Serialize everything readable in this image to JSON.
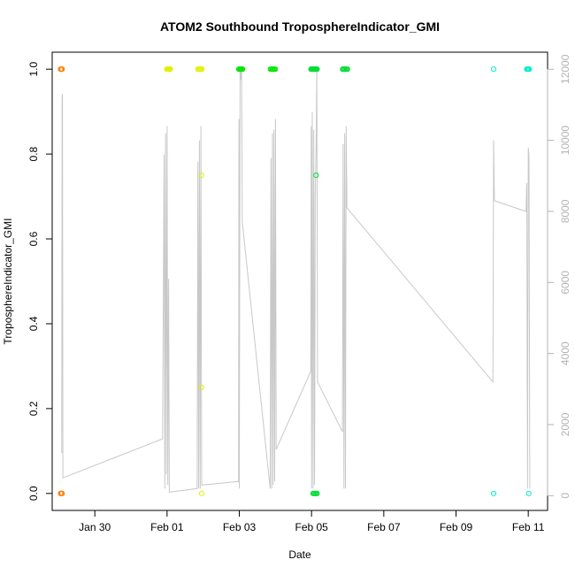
{
  "chart_data": {
    "type": "scatter",
    "title": "ATOM2 Southbound TroposphereIndicator_GMI",
    "xlabel": "Date",
    "ylabel": "TroposphereIndicator_GMI",
    "xlim": [
      "2025-01-28T19:40",
      "2025-02-11T12:50"
    ],
    "ylim": [
      -0.04,
      1.04
    ],
    "y2lim": [
      -415,
      12480
    ],
    "x_ticks": [
      {
        "t": "2025-01-30T00:00",
        "label": "Jan 30"
      },
      {
        "t": "2025-02-01T00:00",
        "label": "Feb 01"
      },
      {
        "t": "2025-02-03T00:00",
        "label": "Feb 03"
      },
      {
        "t": "2025-02-05T00:00",
        "label": "Feb 05"
      },
      {
        "t": "2025-02-07T00:00",
        "label": "Feb 07"
      },
      {
        "t": "2025-02-09T00:00",
        "label": "Feb 09"
      },
      {
        "t": "2025-02-11T00:00",
        "label": "Feb 11"
      }
    ],
    "y_ticks": [
      "0.0",
      "0.2",
      "0.4",
      "0.6",
      "0.8",
      "1.0"
    ],
    "y2_ticks": [
      "0",
      "2000",
      "4000",
      "6000",
      "8000",
      "10000",
      "12000"
    ],
    "grid": false,
    "series": [
      {
        "color": "#ff8000",
        "points": [
          {
            "t": "2025-01-29T01:15",
            "y": 1.0
          },
          {
            "t": "2025-01-29T01:30",
            "y": 1.0
          },
          {
            "t": "2025-01-29T01:45",
            "y": 1.0
          },
          {
            "t": "2025-01-29T02:00",
            "y": 1.0
          },
          {
            "t": "2025-01-29T02:15",
            "y": 1.0
          },
          {
            "t": "2025-01-29T01:15",
            "y": 0.0
          },
          {
            "t": "2025-01-29T01:30",
            "y": 0.0
          },
          {
            "t": "2025-01-29T01:45",
            "y": 0.0
          },
          {
            "t": "2025-01-29T02:00",
            "y": 0.0
          },
          {
            "t": "2025-01-29T02:15",
            "y": 0.0
          }
        ]
      },
      {
        "color": "#e0f000",
        "points": [
          {
            "t": "2025-01-31T23:50",
            "y": 1.0
          },
          {
            "t": "2025-02-01T00:20",
            "y": 1.0
          },
          {
            "t": "2025-02-01T00:50",
            "y": 1.0
          },
          {
            "t": "2025-02-01T01:20",
            "y": 1.0
          },
          {
            "t": "2025-02-01T01:50",
            "y": 1.0
          },
          {
            "t": "2025-02-01T02:10",
            "y": 1.0
          },
          {
            "t": "2025-02-01T20:30",
            "y": 1.0
          },
          {
            "t": "2025-02-01T21:10",
            "y": 1.0
          },
          {
            "t": "2025-02-01T21:50",
            "y": 1.0
          },
          {
            "t": "2025-02-01T22:30",
            "y": 1.0
          },
          {
            "t": "2025-02-01T23:10",
            "y": 1.0
          },
          {
            "t": "2025-02-01T22:50",
            "y": 0.75
          },
          {
            "t": "2025-02-01T22:50",
            "y": 0.25
          },
          {
            "t": "2025-02-01T23:00",
            "y": 0.0
          }
        ]
      },
      {
        "color": "#00e600",
        "points": [
          {
            "t": "2025-02-02T23:40",
            "y": 1.0
          },
          {
            "t": "2025-02-03T00:10",
            "y": 1.0
          },
          {
            "t": "2025-02-03T00:40",
            "y": 1.0
          },
          {
            "t": "2025-02-03T01:10",
            "y": 1.0
          },
          {
            "t": "2025-02-03T01:40",
            "y": 1.0
          },
          {
            "t": "2025-02-03T02:10",
            "y": 1.0
          },
          {
            "t": "2025-02-03T20:40",
            "y": 1.0
          },
          {
            "t": "2025-02-03T21:20",
            "y": 1.0
          },
          {
            "t": "2025-02-03T22:00",
            "y": 1.0
          },
          {
            "t": "2025-02-03T22:40",
            "y": 1.0
          },
          {
            "t": "2025-02-03T23:20",
            "y": 1.0
          },
          {
            "t": "2025-02-03T23:50",
            "y": 1.0
          }
        ]
      },
      {
        "color": "#00dd33",
        "points": [
          {
            "t": "2025-02-04T23:40",
            "y": 1.0
          },
          {
            "t": "2025-02-05T00:10",
            "y": 1.0
          },
          {
            "t": "2025-02-05T00:40",
            "y": 1.0
          },
          {
            "t": "2025-02-05T01:10",
            "y": 1.0
          },
          {
            "t": "2025-02-05T01:40",
            "y": 1.0
          },
          {
            "t": "2025-02-05T02:10",
            "y": 1.0
          },
          {
            "t": "2025-02-05T02:40",
            "y": 1.0
          },
          {
            "t": "2025-02-05T03:10",
            "y": 1.0
          },
          {
            "t": "2025-02-05T03:40",
            "y": 1.0
          },
          {
            "t": "2025-02-05T03:00",
            "y": 0.75
          },
          {
            "t": "2025-02-05T01:00",
            "y": 0.0
          },
          {
            "t": "2025-02-05T01:40",
            "y": 0.0
          },
          {
            "t": "2025-02-05T02:20",
            "y": 0.0
          },
          {
            "t": "2025-02-05T03:00",
            "y": 0.0
          },
          {
            "t": "2025-02-05T03:40",
            "y": 0.0
          },
          {
            "t": "2025-02-05T20:40",
            "y": 1.0
          },
          {
            "t": "2025-02-05T21:20",
            "y": 1.0
          },
          {
            "t": "2025-02-05T22:00",
            "y": 1.0
          },
          {
            "t": "2025-02-05T22:40",
            "y": 1.0
          },
          {
            "t": "2025-02-05T23:20",
            "y": 1.0
          },
          {
            "t": "2025-02-05T23:50",
            "y": 1.0
          }
        ]
      },
      {
        "color": "#00f0c8",
        "points": [
          {
            "t": "2025-02-10T01:00",
            "y": 1.0
          },
          {
            "t": "2025-02-10T01:00",
            "y": 0.0
          },
          {
            "t": "2025-02-10T23:00",
            "y": 1.0
          },
          {
            "t": "2025-02-10T23:20",
            "y": 1.0
          },
          {
            "t": "2025-02-10T23:40",
            "y": 1.0
          },
          {
            "t": "2025-02-11T00:00",
            "y": 1.0
          },
          {
            "t": "2025-02-11T00:20",
            "y": 1.0
          },
          {
            "t": "2025-02-11T00:40",
            "y": 1.0
          },
          {
            "t": "2025-02-11T00:20",
            "y": 0.0
          }
        ]
      }
    ],
    "altitude_line": {
      "color": "#c8c8c8",
      "points": [
        [
          "2025-01-29T02:00",
          1200
        ],
        [
          "2025-01-29T02:15",
          11200
        ],
        [
          "2025-01-29T02:30",
          11300
        ],
        [
          "2025-01-29T02:45",
          500
        ],
        [
          "2025-01-31T21:00",
          1600
        ],
        [
          "2025-01-31T22:00",
          9600
        ],
        [
          "2025-01-31T22:30",
          200
        ],
        [
          "2025-01-31T23:00",
          10200
        ],
        [
          "2025-01-31T23:30",
          600
        ],
        [
          "2025-02-01T00:00",
          10400
        ],
        [
          "2025-02-01T00:30",
          300
        ],
        [
          "2025-02-01T01:00",
          6100
        ],
        [
          "2025-02-01T01:30",
          100
        ],
        [
          "2025-02-01T02:00",
          100
        ],
        [
          "2025-02-01T20:00",
          200
        ],
        [
          "2025-02-01T20:30",
          9400
        ],
        [
          "2025-02-01T21:00",
          200
        ],
        [
          "2025-02-01T21:30",
          10000
        ],
        [
          "2025-02-01T22:00",
          200
        ],
        [
          "2025-02-01T22:30",
          10400
        ],
        [
          "2025-02-01T23:00",
          300
        ],
        [
          "2025-02-02T23:30",
          400
        ],
        [
          "2025-02-02T23:45",
          10600
        ],
        [
          "2025-02-03T00:00",
          200
        ],
        [
          "2025-02-03T00:30",
          12000
        ],
        [
          "2025-02-03T01:00",
          11700
        ],
        [
          "2025-02-03T01:30",
          12000
        ],
        [
          "2025-02-03T02:00",
          7700
        ],
        [
          "2025-02-03T20:30",
          200
        ],
        [
          "2025-02-03T21:00",
          9500
        ],
        [
          "2025-02-03T21:30",
          200
        ],
        [
          "2025-02-03T22:00",
          10200
        ],
        [
          "2025-02-03T22:30",
          300
        ],
        [
          "2025-02-03T23:00",
          10300
        ],
        [
          "2025-02-03T23:30",
          400
        ],
        [
          "2025-02-04T00:00",
          10600
        ],
        [
          "2025-02-04T00:30",
          1300
        ],
        [
          "2025-02-04T23:30",
          3500
        ],
        [
          "2025-02-04T23:45",
          10400
        ],
        [
          "2025-02-05T00:00",
          200
        ],
        [
          "2025-02-05T00:30",
          10800
        ],
        [
          "2025-02-05T01:00",
          200
        ],
        [
          "2025-02-05T01:30",
          10300
        ],
        [
          "2025-02-05T02:00",
          300
        ],
        [
          "2025-02-05T02:30",
          8500
        ],
        [
          "2025-02-05T03:00",
          9700
        ],
        [
          "2025-02-05T03:30",
          12000
        ],
        [
          "2025-02-05T04:00",
          3200
        ],
        [
          "2025-02-05T20:30",
          1800
        ],
        [
          "2025-02-05T21:00",
          9900
        ],
        [
          "2025-02-05T21:30",
          200
        ],
        [
          "2025-02-05T22:00",
          10200
        ],
        [
          "2025-02-05T22:30",
          200
        ],
        [
          "2025-02-05T23:00",
          10400
        ],
        [
          "2025-02-05T23:30",
          8100
        ],
        [
          "2025-02-10T00:30",
          3200
        ],
        [
          "2025-02-10T01:00",
          10000
        ],
        [
          "2025-02-10T01:30",
          8300
        ],
        [
          "2025-02-10T22:30",
          8000
        ],
        [
          "2025-02-10T23:00",
          8800
        ],
        [
          "2025-02-10T23:30",
          200
        ],
        [
          "2025-02-11T00:00",
          9800
        ],
        [
          "2025-02-11T00:30",
          9500
        ],
        [
          "2025-02-11T01:00",
          200
        ]
      ]
    }
  }
}
